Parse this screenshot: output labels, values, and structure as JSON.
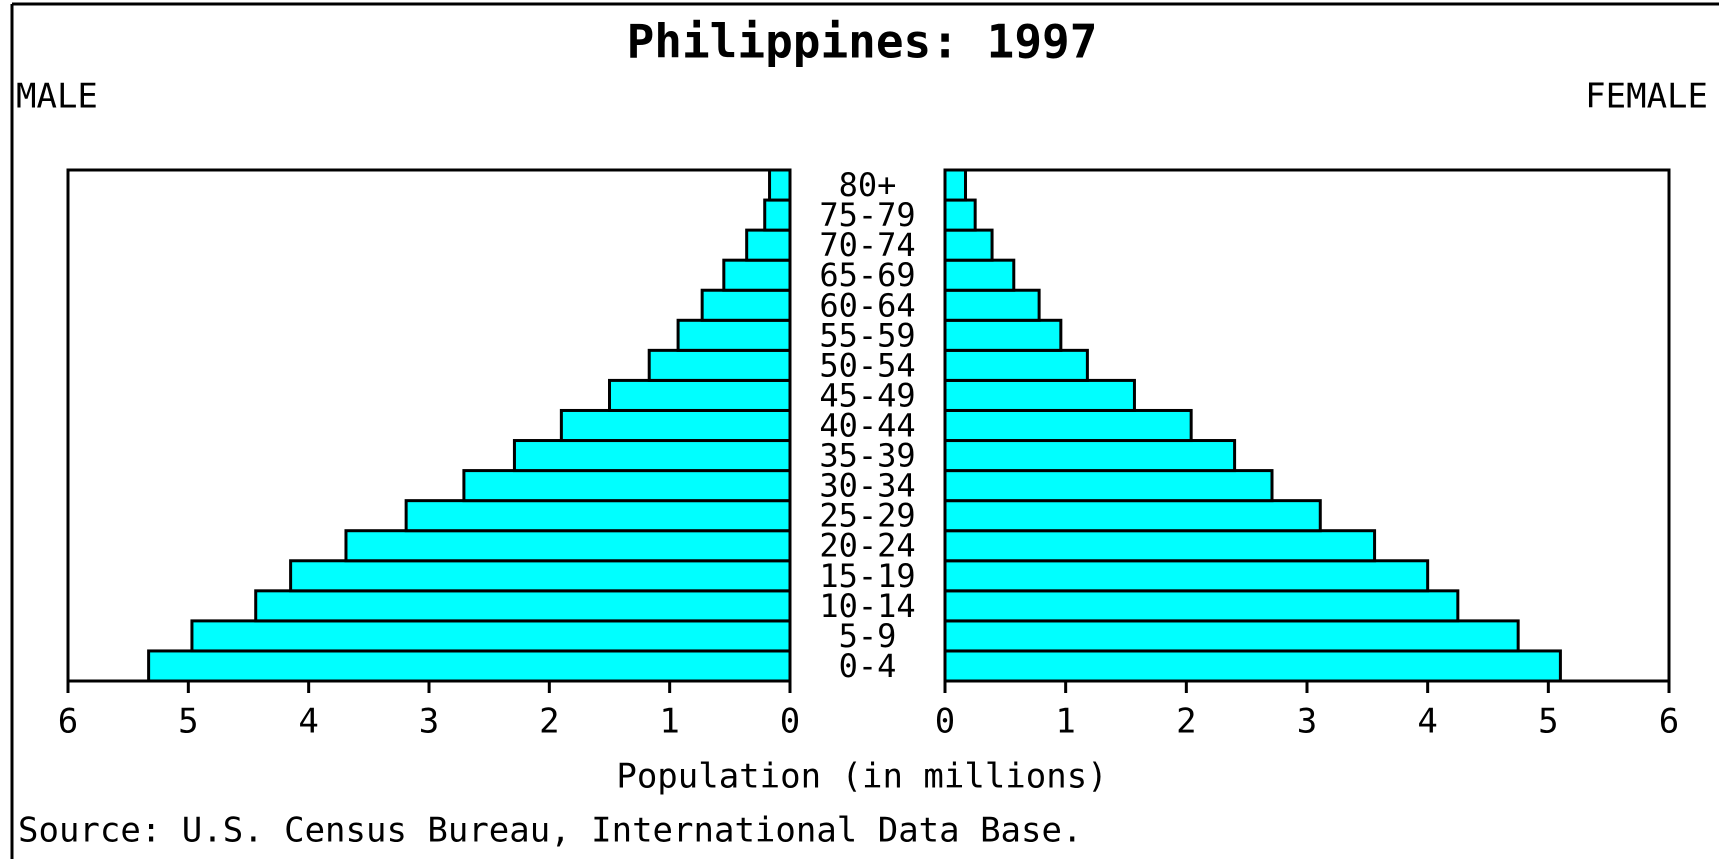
{
  "chart_data": {
    "type": "pyramid",
    "title": "Philippines: 1997",
    "xlabel": "Population (in millions)",
    "source": "Source: U.S. Census Bureau, International Data Base.",
    "categories": [
      "0-4",
      "5-9",
      "10-14",
      "15-19",
      "20-24",
      "25-29",
      "30-34",
      "35-39",
      "40-44",
      "45-49",
      "50-54",
      "55-59",
      "60-64",
      "65-69",
      "70-74",
      "75-79",
      "80+"
    ],
    "series": [
      {
        "name": "MALE",
        "color": "#00ffff",
        "values": [
          5.33,
          4.97,
          4.44,
          4.15,
          3.69,
          3.19,
          2.71,
          2.29,
          1.9,
          1.5,
          1.17,
          0.93,
          0.73,
          0.55,
          0.36,
          0.21,
          0.17
        ]
      },
      {
        "name": "FEMALE",
        "color": "#00ffff",
        "values": [
          5.1,
          4.75,
          4.25,
          4.0,
          3.56,
          3.11,
          2.71,
          2.4,
          2.04,
          1.57,
          1.18,
          0.96,
          0.78,
          0.57,
          0.39,
          0.25,
          0.17
        ]
      }
    ],
    "xlim": [
      0,
      6
    ],
    "xticks": [
      0,
      1,
      2,
      3,
      4,
      5,
      6
    ]
  }
}
